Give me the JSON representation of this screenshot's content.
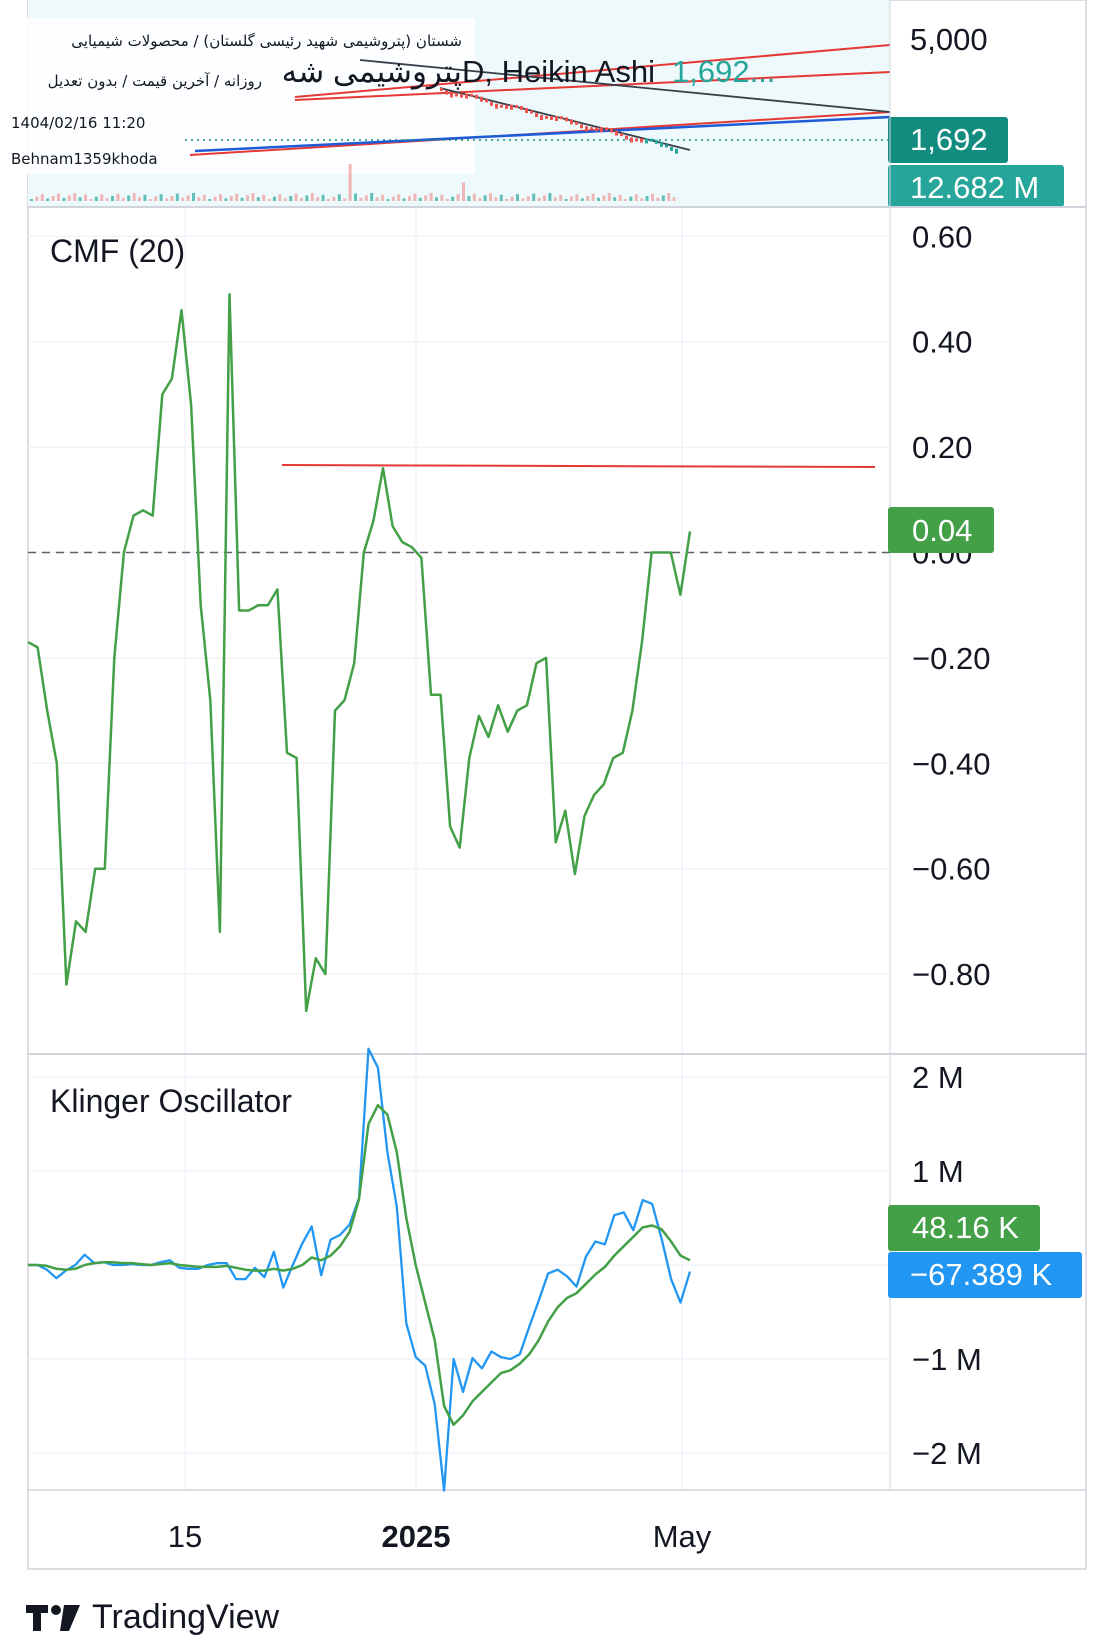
{
  "header": {
    "exchange_line": "شستان (پتروشیمی شهید رئیسی گلستان) / محصولات شیمیایی",
    "settings_line": "روزانه / آخرین قیمت / بدون تعدیل",
    "datetime": "1404/02/16 11:20",
    "author": "Behnam1359khoda",
    "symbol_title": "پتروشیمی شهD, Heikin Ashi",
    "last_price_inline": "1,692..."
  },
  "price_pane": {
    "axis_label": "5,000",
    "price_badge": "1,692",
    "volume_badge": "12.682 M",
    "colors": {
      "price_badge": "#128c7e",
      "volume_badge": "#26a69a",
      "bg": "#eef9fb"
    }
  },
  "cmf_pane": {
    "title": "CMF (20)",
    "value_badge": "0.04",
    "y_ticks": [
      "0.60",
      "0.40",
      "0.20",
      "0.00",
      "−0.20",
      "−0.40",
      "−0.60",
      "−0.80"
    ]
  },
  "klinger_pane": {
    "title": "Klinger Oscillator",
    "value_badge_signal": "48.16 K",
    "value_badge_ko": "−67.389 K",
    "y_ticks": [
      "2 M",
      "1 M",
      "−1 M",
      "−2 M"
    ]
  },
  "x_axis": {
    "labels": [
      "15",
      "2025",
      "May"
    ]
  },
  "brand": {
    "name": "TradingView"
  },
  "colors": {
    "cmf_line": "#43a047",
    "cmf_badge": "#43a047",
    "resistance_line": "#e53935",
    "klinger_line": "#2196f3",
    "signal_line": "#43a047",
    "grid": "#f0f3fa",
    "divider": "#d1d4dc"
  },
  "chart_data": [
    {
      "type": "line",
      "title": "CMF (20)",
      "x_ticks": [
        "15",
        "2025",
        "May"
      ],
      "ylim": [
        -0.88,
        0.62
      ],
      "zero_line": 0.0,
      "last_value": 0.04,
      "resistance_level": 0.16,
      "series": [
        {
          "name": "CMF (20)",
          "values": [
            -0.17,
            -0.18,
            -0.3,
            -0.4,
            -0.82,
            -0.7,
            -0.72,
            -0.6,
            -0.6,
            -0.2,
            0.0,
            0.07,
            0.08,
            0.07,
            0.3,
            0.33,
            0.46,
            0.28,
            -0.1,
            -0.28,
            -0.72,
            0.49,
            -0.11,
            -0.11,
            -0.1,
            -0.1,
            -0.07,
            -0.38,
            -0.39,
            -0.87,
            -0.77,
            -0.8,
            -0.3,
            -0.28,
            -0.21,
            0.0,
            0.06,
            0.16,
            0.05,
            0.02,
            0.01,
            -0.01,
            -0.27,
            -0.27,
            -0.52,
            -0.56,
            -0.39,
            -0.31,
            -0.35,
            -0.29,
            -0.34,
            -0.3,
            -0.29,
            -0.21,
            -0.2,
            -0.55,
            -0.49,
            -0.61,
            -0.5,
            -0.46,
            -0.44,
            -0.39,
            -0.38,
            -0.3,
            -0.17,
            0.0,
            0.0,
            0.0,
            -0.08,
            0.04
          ]
        }
      ]
    },
    {
      "type": "line",
      "title": "Klinger Oscillator",
      "x_ticks": [
        "15",
        "2025",
        "May"
      ],
      "ylim": [
        -2.35,
        2.35
      ],
      "units": "M",
      "last_values": {
        "klinger": -0.067389,
        "signal": 0.04816
      },
      "series": [
        {
          "name": "Klinger Oscillator",
          "values": [
            0.0,
            0.0,
            -0.05,
            -0.14,
            -0.06,
            0.0,
            0.11,
            0.02,
            0.03,
            0.0,
            0.0,
            0.01,
            0.0,
            0.0,
            0.03,
            0.05,
            -0.03,
            -0.04,
            -0.04,
            0.0,
            0.02,
            0.02,
            -0.15,
            -0.15,
            -0.03,
            -0.13,
            0.14,
            -0.24,
            0.0,
            0.23,
            0.41,
            -0.11,
            0.27,
            0.32,
            0.43,
            0.71,
            2.3,
            2.1,
            1.2,
            0.62,
            -0.62,
            -0.98,
            -1.07,
            -1.48,
            -2.4,
            -1.0,
            -1.35,
            -0.99,
            -1.1,
            -0.92,
            -0.98,
            -1.0,
            -0.95,
            -0.66,
            -0.38,
            -0.09,
            -0.05,
            -0.12,
            -0.23,
            0.09,
            0.25,
            0.22,
            0.53,
            0.56,
            0.37,
            0.69,
            0.65,
            0.28,
            -0.15,
            -0.4,
            -0.07
          ]
        },
        {
          "name": "Signal",
          "values": [
            0.0,
            0.0,
            -0.01,
            -0.04,
            -0.05,
            -0.04,
            0.0,
            0.02,
            0.03,
            0.03,
            0.02,
            0.02,
            0.01,
            0.0,
            0.01,
            0.02,
            0.0,
            -0.01,
            -0.02,
            -0.02,
            -0.02,
            -0.01,
            -0.03,
            -0.05,
            -0.06,
            -0.06,
            -0.04,
            -0.06,
            -0.04,
            0.0,
            0.08,
            0.05,
            0.1,
            0.2,
            0.35,
            0.7,
            1.5,
            1.7,
            1.6,
            1.2,
            0.5,
            0.0,
            -0.4,
            -0.8,
            -1.5,
            -1.7,
            -1.6,
            -1.45,
            -1.35,
            -1.25,
            -1.15,
            -1.12,
            -1.05,
            -0.95,
            -0.8,
            -0.6,
            -0.45,
            -0.35,
            -0.3,
            -0.2,
            -0.1,
            -0.02,
            0.1,
            0.2,
            0.3,
            0.4,
            0.42,
            0.38,
            0.25,
            0.1,
            0.05
          ]
        }
      ]
    }
  ]
}
